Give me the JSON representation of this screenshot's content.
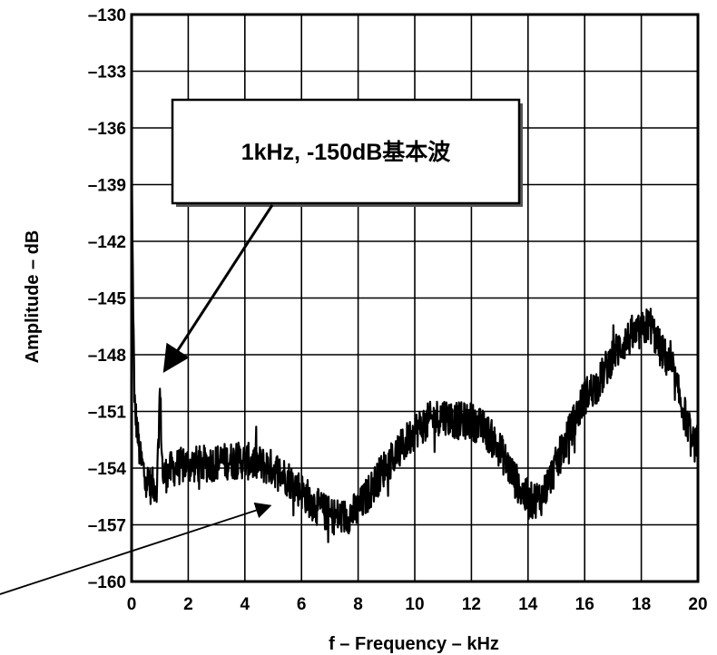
{
  "chart_data": {
    "type": "line",
    "title": "",
    "xlabel": "f – Frequency – kHz",
    "ylabel": "Amplitude – dB",
    "xlim": [
      0,
      20
    ],
    "ylim": [
      -160,
      -130
    ],
    "xticks": [
      0,
      2,
      4,
      6,
      8,
      10,
      12,
      14,
      16,
      18,
      20
    ],
    "yticks": [
      -130,
      -133,
      -136,
      -139,
      -142,
      -145,
      -148,
      -151,
      -154,
      -157,
      -160
    ],
    "xtick_labels": [
      "0",
      "2",
      "4",
      "6",
      "8",
      "10",
      "12",
      "14",
      "16",
      "18",
      "20"
    ],
    "ytick_labels": [
      "–130",
      "–133",
      "–136",
      "–139",
      "–142",
      "–145",
      "–148",
      "–151",
      "–154",
      "–157",
      "–160"
    ],
    "grid": true,
    "series": [
      {
        "x": [
          0.0,
          0.1,
          0.2,
          0.3,
          0.5,
          0.7,
          0.9,
          1.0,
          1.1,
          1.3,
          1.5,
          2.0,
          2.5,
          3.0,
          3.5,
          4.0,
          4.5,
          5.0,
          5.5,
          6.0,
          6.5,
          7.0,
          7.5,
          8.0,
          8.5,
          9.0,
          9.5,
          10.0,
          10.5,
          11.0,
          11.5,
          12.0,
          12.5,
          13.0,
          13.5,
          14.0,
          14.5,
          15.0,
          15.5,
          16.0,
          16.5,
          17.0,
          17.5,
          18.0,
          18.3,
          18.6,
          19.0,
          19.3,
          19.6,
          19.8,
          20.0
        ],
        "y": [
          -138.5,
          -150.5,
          -152.0,
          -153.5,
          -154.5,
          -155.0,
          -154.8,
          -149.8,
          -154.5,
          -154.2,
          -154.0,
          -153.8,
          -153.8,
          -153.7,
          -153.6,
          -153.6,
          -153.8,
          -154.0,
          -154.5,
          -155.2,
          -156.0,
          -156.5,
          -156.6,
          -156.2,
          -155.0,
          -153.8,
          -153.0,
          -152.0,
          -151.5,
          -151.2,
          -151.5,
          -151.5,
          -152.0,
          -153.0,
          -154.5,
          -155.8,
          -155.5,
          -153.8,
          -152.0,
          -150.2,
          -149.5,
          -148.0,
          -147.2,
          -146.8,
          -146.3,
          -147.5,
          -148.5,
          -150.0,
          -151.5,
          -152.8,
          -152.5
        ]
      }
    ],
    "annotations": [
      {
        "text": "1kHz, -150dB基本波",
        "x": 1.0,
        "y": -149.8
      }
    ]
  }
}
